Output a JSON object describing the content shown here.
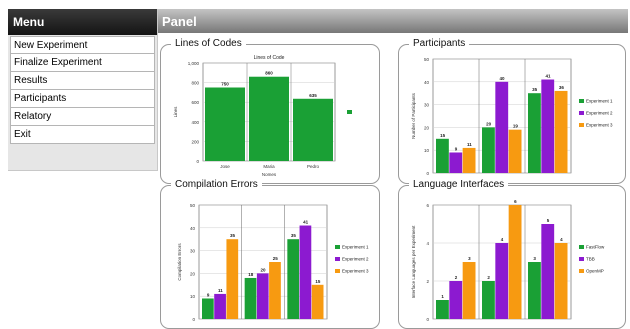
{
  "menu": {
    "title": "Menu",
    "items": [
      {
        "label": "New Experiment"
      },
      {
        "label": "Finalize Experiment"
      },
      {
        "label": "Results"
      },
      {
        "label": "Participants"
      },
      {
        "label": "Relatory"
      },
      {
        "label": "Exit"
      }
    ]
  },
  "panel": {
    "title": "Panel"
  },
  "sections": {
    "lines": {
      "legend": "Lines of Codes"
    },
    "participants": {
      "legend": "Participants"
    },
    "compilation": {
      "legend": "Compilation Errors"
    },
    "language": {
      "legend": "Language Interfaces"
    }
  },
  "colors": {
    "green": "#1aa035",
    "purple": "#8c1ad0",
    "orange": "#f79a11"
  },
  "chart_data": [
    {
      "type": "bar",
      "title": "Lines of Code",
      "xlabel": "Nomes",
      "ylabel": "Lines",
      "ylim": [
        0,
        1000
      ],
      "yticks": [
        "0",
        "200",
        "400",
        "600",
        "800",
        "1,000"
      ],
      "categories": [
        "Jose",
        "Maria",
        "Pedro"
      ],
      "values": [
        750,
        860,
        635
      ],
      "value_labels": [
        "750",
        "860",
        "635"
      ]
    },
    {
      "type": "bar",
      "title": "",
      "ylabel": "Number of Participants",
      "ylim": [
        0,
        50
      ],
      "yticks": [
        "0",
        "10",
        "20",
        "30",
        "40",
        "50"
      ],
      "groups": 3,
      "series": [
        {
          "name": "Experiment 1",
          "values": [
            15,
            20,
            35
          ],
          "labels": [
            "15",
            "20",
            "35"
          ]
        },
        {
          "name": "Experiment 2",
          "values": [
            9,
            40,
            41
          ],
          "labels": [
            "9",
            "40",
            "41"
          ]
        },
        {
          "name": "Experiment 3",
          "values": [
            11,
            19,
            36
          ],
          "labels": [
            "11",
            "19",
            "36"
          ]
        }
      ]
    },
    {
      "type": "bar",
      "title": "",
      "ylabel": "Compilation Errors",
      "ylim": [
        0,
        50
      ],
      "yticks": [
        "0",
        "10",
        "20",
        "30",
        "40",
        "50"
      ],
      "groups": 3,
      "series": [
        {
          "name": "Experiment 1",
          "values": [
            9,
            18,
            35
          ],
          "labels": [
            "9",
            "18",
            "35"
          ]
        },
        {
          "name": "Experiment 2",
          "values": [
            11,
            20,
            41
          ],
          "labels": [
            "11",
            "20",
            "41"
          ]
        },
        {
          "name": "Experiment 3",
          "values": [
            35,
            25,
            15
          ],
          "labels": [
            "35",
            "25",
            "15"
          ]
        }
      ]
    },
    {
      "type": "bar",
      "title": "",
      "ylabel": "Interface Languages per Experiment",
      "ylim": [
        0,
        6
      ],
      "yticks": [
        "0",
        "2",
        "4",
        "6"
      ],
      "groups": 3,
      "series": [
        {
          "name": "FastFlow",
          "values": [
            1,
            2,
            3
          ],
          "labels": [
            "1",
            "2",
            "3"
          ]
        },
        {
          "name": "TBB",
          "values": [
            2,
            4,
            5
          ],
          "labels": [
            "2",
            "4",
            "5"
          ]
        },
        {
          "name": "OpenMP",
          "values": [
            3,
            6,
            4
          ],
          "labels": [
            "3",
            "6",
            "4"
          ]
        }
      ]
    }
  ]
}
